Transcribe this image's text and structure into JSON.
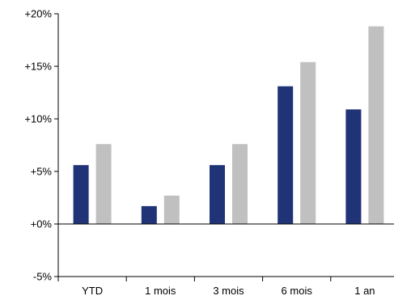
{
  "chart_data": {
    "type": "bar",
    "categories": [
      "YTD",
      "1 mois",
      "3 mois",
      "6 mois",
      "1 an"
    ],
    "series": [
      {
        "values": [
          5.6,
          1.7,
          5.6,
          13.1,
          10.9
        ],
        "color": "#1f3376"
      },
      {
        "values": [
          7.6,
          2.7,
          7.6,
          15.4,
          18.8
        ],
        "color": "#c0c0c0"
      }
    ],
    "ylim": [
      -5,
      20
    ],
    "yticks": [
      20,
      15,
      10,
      5,
      0,
      -5
    ],
    "ytick_labels": [
      "+20%",
      "+15%",
      "+10%",
      "+5%",
      "+0%",
      "-5%"
    ],
    "grid": false,
    "legend": "none",
    "title": "",
    "xlabel": "",
    "ylabel": ""
  }
}
